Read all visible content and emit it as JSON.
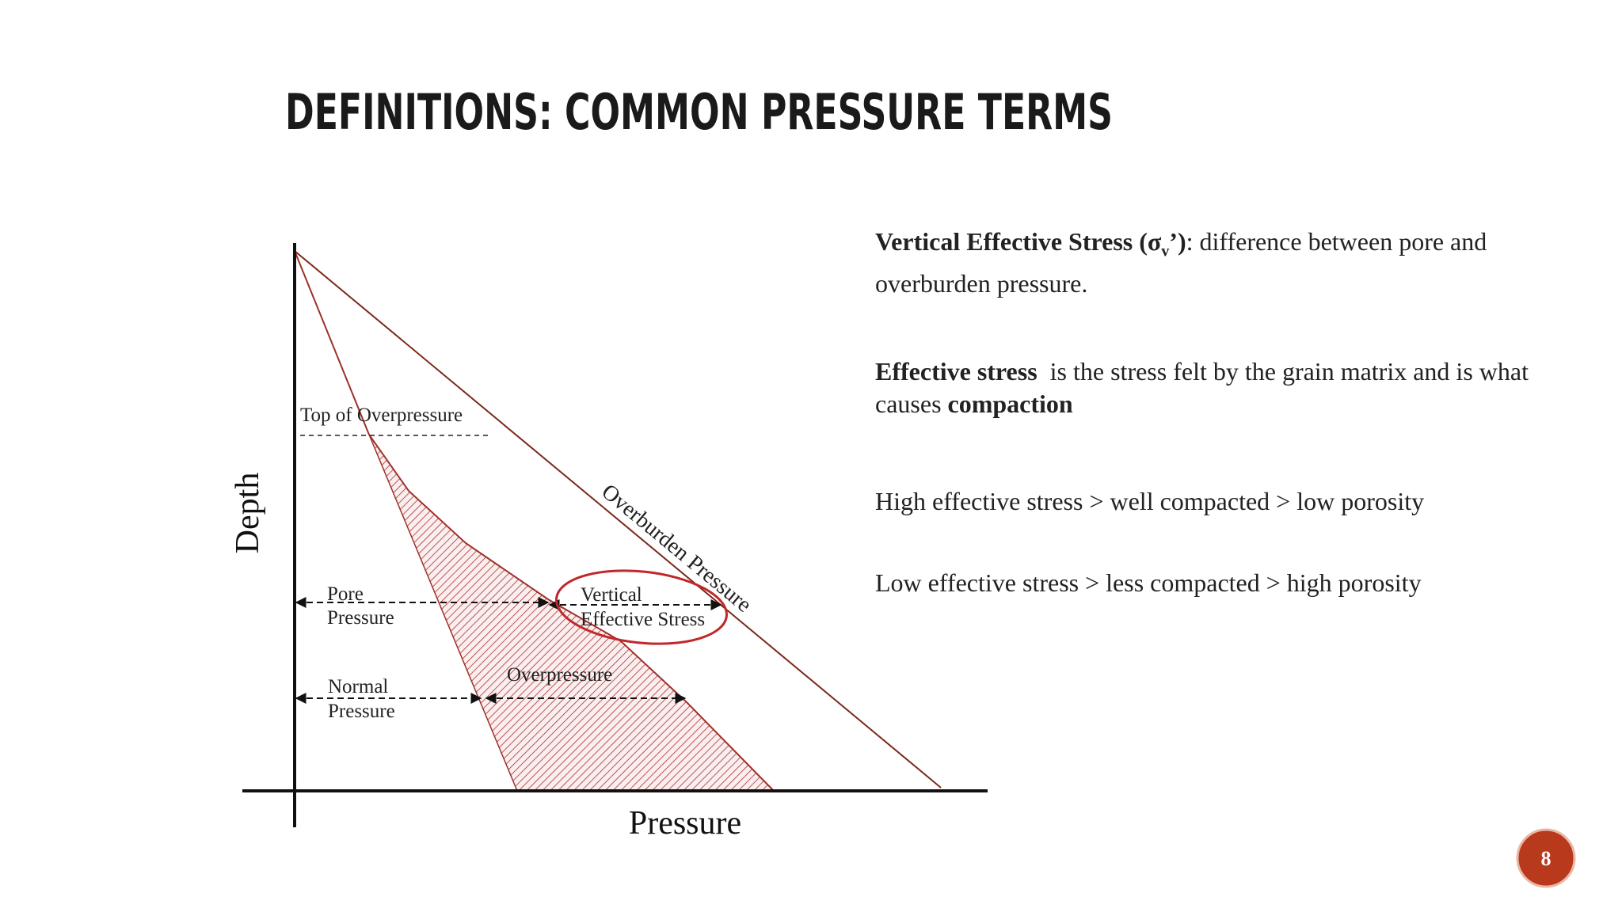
{
  "header": {
    "title": "DEFINITIONS: COMMON PRESSURE TERMS"
  },
  "diagram": {
    "y_axis_label": "Depth",
    "x_axis_label": "Pressure",
    "top_of_overpressure": "Top of Overpressure",
    "overburden_pressure": "Overburden Pressure",
    "pore_pressure": [
      "Pore",
      "Pressure"
    ],
    "vertical_effective_stress": [
      "Vertical",
      "Effective Stress"
    ],
    "normal_pressure": [
      "Normal",
      "Pressure"
    ],
    "overpressure": "Overpressure"
  },
  "paragraphs": [
    [
      "Vertical Effective Stress (σ",
      "v",
      "’)",
      ": difference between pore and overburden pressure."
    ],
    [
      "Effective stress",
      "  is the stress felt by the grain matrix and is what causes ",
      "compaction"
    ],
    [
      "High effective stress > well compacted > low porosity"
    ],
    [
      "Low effective stress > less compacted > high porosity"
    ]
  ],
  "footer": {
    "slide_number": "8"
  }
}
